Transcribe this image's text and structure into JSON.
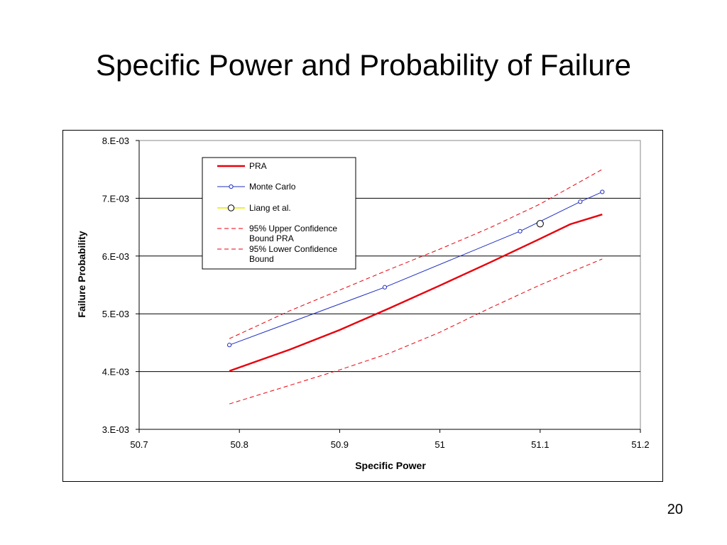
{
  "slide": {
    "title": "Specific Power and Probability of Failure",
    "number": "20"
  },
  "chart_data": {
    "type": "line",
    "title": "",
    "xlabel": "Specific Power",
    "ylabel": "Failure Probability",
    "xlim": [
      50.7,
      51.2
    ],
    "ylim": [
      0.003,
      0.008
    ],
    "x_ticks": [
      50.7,
      50.8,
      50.9,
      51,
      51.1,
      51.2
    ],
    "x_tick_labels": [
      "50.7",
      "50.8",
      "50.9",
      "51",
      "51.1",
      "51.2"
    ],
    "y_ticks": [
      0.003,
      0.004,
      0.005,
      0.006,
      0.007,
      0.008
    ],
    "y_tick_labels": [
      "3.E-03",
      "4.E-03",
      "5.E-03",
      "6.E-03",
      "7.E-03",
      "8.E-03"
    ],
    "grid": "horizontal major gridlines",
    "legend_position": "top-left inside plot",
    "series": [
      {
        "name": "PRA",
        "style": "solid",
        "color": "#e8000b",
        "x": [
          50.79,
          50.85,
          50.9,
          50.95,
          51.0,
          51.05,
          51.1,
          51.13,
          51.162
        ],
        "y": [
          0.00401,
          0.00438,
          0.00472,
          0.0051,
          0.00549,
          0.00589,
          0.0063,
          0.00655,
          0.00672
        ]
      },
      {
        "name": "Monte Carlo",
        "style": "solid-markers",
        "color": "#1f2fbf",
        "x": [
          50.79,
          50.945,
          51.08,
          51.14,
          51.162
        ],
        "y": [
          0.00446,
          0.00546,
          0.00643,
          0.00694,
          0.00711
        ]
      },
      {
        "name": "Liang et al.",
        "style": "marker",
        "color": "#e8e800",
        "x": [
          51.1
        ],
        "y": [
          0.00656
        ]
      },
      {
        "name": "95% Upper Confidence Bound PRA",
        "style": "dashed",
        "color": "#e8000b",
        "x": [
          50.79,
          50.85,
          50.9,
          50.95,
          51.0,
          51.05,
          51.1,
          51.162
        ],
        "y": [
          0.00457,
          0.00505,
          0.00541,
          0.00577,
          0.00612,
          0.00649,
          0.0069,
          0.0075
        ]
      },
      {
        "name": "95% Lower Confidence Bound",
        "style": "dashed",
        "color": "#e8000b",
        "x": [
          50.79,
          50.85,
          50.9,
          50.95,
          51.0,
          51.05,
          51.1,
          51.162
        ],
        "y": [
          0.00344,
          0.00376,
          0.00403,
          0.00432,
          0.00468,
          0.0051,
          0.0055,
          0.00595
        ]
      }
    ],
    "legend": [
      {
        "label_lines": [
          "PRA"
        ],
        "series": 0
      },
      {
        "label_lines": [
          "Monte Carlo"
        ],
        "series": 1
      },
      {
        "label_lines": [
          "Liang et al."
        ],
        "series": 2
      },
      {
        "label_lines": [
          "95% Upper Confidence",
          "Bound PRA"
        ],
        "series": 3
      },
      {
        "label_lines": [
          "95% Lower Confidence",
          "Bound"
        ],
        "series": 4
      }
    ]
  }
}
